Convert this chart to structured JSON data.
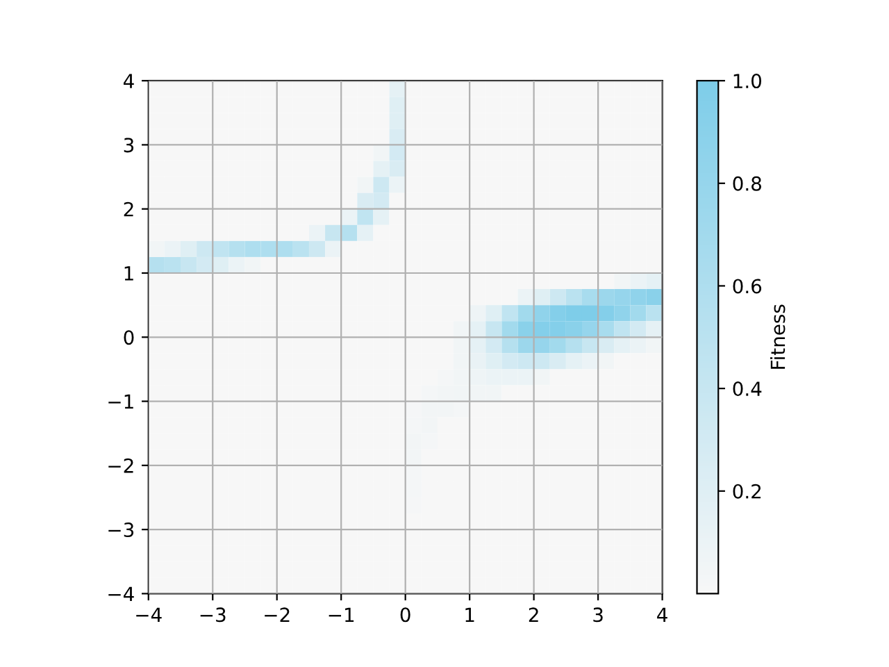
{
  "chart_data": {
    "type": "heatmap",
    "clabel": "Fitness",
    "xlim": [
      -4,
      4
    ],
    "ylim": [
      -4,
      4
    ],
    "xticks": [
      -4,
      -3,
      -2,
      -1,
      0,
      1,
      2,
      3,
      4
    ],
    "yticks": [
      -4,
      -3,
      -2,
      -1,
      0,
      1,
      2,
      3,
      4
    ],
    "clim": [
      0,
      1
    ],
    "cticks": [
      0.2,
      0.4,
      0.6,
      0.8,
      {
        "value": 1,
        "label": "1.0"
      }
    ],
    "colors": [
      "#f7f7f7",
      "#7ecde9"
    ],
    "grid": true,
    "cells": [
      [
        0,
        0,
        0,
        0,
        0,
        0,
        0,
        0,
        0,
        0,
        0,
        0,
        0,
        0,
        0,
        0.15,
        0,
        0,
        0,
        0,
        0,
        0,
        0,
        0,
        0,
        0,
        0,
        0,
        0,
        0,
        0,
        0
      ],
      [
        0,
        0,
        0,
        0,
        0,
        0,
        0,
        0,
        0,
        0,
        0,
        0,
        0,
        0,
        0,
        0.2,
        0,
        0,
        0,
        0,
        0,
        0,
        0,
        0,
        0,
        0,
        0,
        0,
        0,
        0,
        0,
        0
      ],
      [
        0,
        0,
        0,
        0,
        0,
        0,
        0,
        0,
        0,
        0,
        0,
        0,
        0,
        0,
        0,
        0.2,
        0,
        0,
        0,
        0,
        0,
        0,
        0,
        0,
        0,
        0,
        0,
        0,
        0,
        0,
        0,
        0
      ],
      [
        0,
        0,
        0,
        0,
        0,
        0,
        0,
        0,
        0,
        0,
        0,
        0,
        0,
        0,
        0,
        0.25,
        0,
        0,
        0,
        0,
        0,
        0,
        0,
        0,
        0,
        0,
        0,
        0,
        0,
        0,
        0,
        0
      ],
      [
        0,
        0,
        0,
        0,
        0,
        0,
        0,
        0,
        0,
        0,
        0,
        0,
        0,
        0,
        0.05,
        0.3,
        0,
        0,
        0,
        0,
        0,
        0,
        0,
        0,
        0,
        0,
        0,
        0,
        0,
        0,
        0,
        0
      ],
      [
        0,
        0,
        0,
        0,
        0,
        0,
        0,
        0,
        0,
        0,
        0,
        0,
        0,
        0,
        0.15,
        0.25,
        0,
        0,
        0,
        0,
        0,
        0,
        0,
        0,
        0,
        0,
        0,
        0,
        0,
        0,
        0,
        0
      ],
      [
        0,
        0,
        0,
        0,
        0,
        0,
        0,
        0,
        0,
        0,
        0,
        0,
        0,
        0.05,
        0.35,
        0.1,
        0,
        0,
        0,
        0,
        0,
        0,
        0,
        0,
        0,
        0,
        0,
        0,
        0,
        0,
        0,
        0
      ],
      [
        0,
        0,
        0,
        0,
        0,
        0,
        0,
        0,
        0,
        0,
        0,
        0,
        0,
        0.25,
        0.3,
        0,
        0,
        0,
        0,
        0,
        0,
        0,
        0,
        0,
        0,
        0,
        0,
        0,
        0,
        0,
        0,
        0
      ],
      [
        0,
        0,
        0,
        0,
        0,
        0,
        0,
        0,
        0,
        0,
        0,
        0,
        0.1,
        0.45,
        0.15,
        0,
        0,
        0,
        0,
        0,
        0,
        0,
        0,
        0,
        0,
        0,
        0,
        0,
        0,
        0,
        0,
        0
      ],
      [
        0,
        0,
        0,
        0,
        0,
        0,
        0,
        0,
        0,
        0,
        0.1,
        0.4,
        0.55,
        0.15,
        0,
        0,
        0,
        0,
        0,
        0,
        0,
        0,
        0,
        0,
        0,
        0,
        0,
        0,
        0,
        0,
        0,
        0
      ],
      [
        0.05,
        0.1,
        0.2,
        0.35,
        0.45,
        0.55,
        0.6,
        0.6,
        0.6,
        0.5,
        0.35,
        0.1,
        0,
        0,
        0,
        0,
        0,
        0,
        0,
        0,
        0,
        0,
        0,
        0,
        0,
        0,
        0,
        0,
        0,
        0,
        0,
        0
      ],
      [
        0.55,
        0.5,
        0.4,
        0.3,
        0.2,
        0.1,
        0.05,
        0,
        0,
        0,
        0,
        0,
        0,
        0,
        0,
        0,
        0,
        0,
        0,
        0,
        0,
        0,
        0,
        0,
        0,
        0,
        0,
        0,
        0,
        0,
        0,
        0
      ],
      [
        0,
        0,
        0,
        0,
        0,
        0,
        0,
        0,
        0,
        0,
        0,
        0,
        0,
        0,
        0,
        0,
        0,
        0,
        0,
        0,
        0,
        0,
        0,
        0,
        0,
        0,
        0,
        0,
        0,
        0.05,
        0.1,
        0.15
      ],
      [
        0,
        0,
        0,
        0,
        0,
        0,
        0,
        0,
        0,
        0,
        0,
        0,
        0,
        0,
        0,
        0,
        0,
        0,
        0,
        0,
        0,
        0,
        0,
        0.1,
        0.2,
        0.35,
        0.5,
        0.65,
        0.75,
        0.8,
        0.85,
        0.9
      ],
      [
        0,
        0,
        0,
        0,
        0,
        0,
        0,
        0,
        0,
        0,
        0,
        0,
        0,
        0,
        0,
        0,
        0,
        0,
        0,
        0,
        0.08,
        0.2,
        0.45,
        0.7,
        0.85,
        0.95,
        1.0,
        1.0,
        0.95,
        0.85,
        0.7,
        0.5
      ],
      [
        0,
        0,
        0,
        0,
        0,
        0,
        0,
        0,
        0,
        0,
        0,
        0,
        0,
        0,
        0,
        0,
        0,
        0,
        0,
        0.05,
        0.15,
        0.4,
        0.7,
        0.9,
        0.95,
        0.95,
        0.9,
        0.8,
        0.65,
        0.45,
        0.3,
        0.15
      ],
      [
        0,
        0,
        0,
        0,
        0,
        0,
        0,
        0,
        0,
        0,
        0,
        0,
        0,
        0,
        0,
        0,
        0,
        0,
        0,
        0.05,
        0.15,
        0.3,
        0.55,
        0.75,
        0.8,
        0.7,
        0.55,
        0.4,
        0.25,
        0.15,
        0.1,
        0.05
      ],
      [
        0,
        0,
        0,
        0,
        0,
        0,
        0,
        0,
        0,
        0,
        0,
        0,
        0,
        0,
        0,
        0,
        0,
        0,
        0,
        0.05,
        0.12,
        0.2,
        0.3,
        0.35,
        0.35,
        0.25,
        0.15,
        0.1,
        0.05,
        0,
        0,
        0
      ],
      [
        0,
        0,
        0,
        0,
        0,
        0,
        0,
        0,
        0,
        0,
        0,
        0,
        0,
        0,
        0,
        0,
        0,
        0,
        0.03,
        0.05,
        0.08,
        0.1,
        0.1,
        0.1,
        0.05,
        0,
        0,
        0,
        0,
        0,
        0,
        0
      ],
      [
        0,
        0,
        0,
        0,
        0,
        0,
        0,
        0,
        0,
        0,
        0,
        0,
        0,
        0,
        0,
        0,
        0,
        0.03,
        0.04,
        0.05,
        0.05,
        0.05,
        0,
        0,
        0,
        0,
        0,
        0,
        0,
        0,
        0,
        0
      ],
      [
        0,
        0,
        0,
        0,
        0,
        0,
        0,
        0,
        0,
        0,
        0,
        0,
        0,
        0,
        0,
        0,
        0.02,
        0.04,
        0.04,
        0.03,
        0,
        0,
        0,
        0,
        0,
        0,
        0,
        0,
        0,
        0,
        0,
        0
      ],
      [
        0,
        0,
        0,
        0,
        0,
        0,
        0,
        0,
        0,
        0,
        0,
        0,
        0,
        0,
        0,
        0,
        0.03,
        0.04,
        0,
        0,
        0,
        0,
        0,
        0,
        0,
        0,
        0,
        0,
        0,
        0,
        0,
        0
      ],
      [
        0,
        0,
        0,
        0,
        0,
        0,
        0,
        0,
        0,
        0,
        0,
        0,
        0,
        0,
        0,
        0,
        0.04,
        0.03,
        0,
        0,
        0,
        0,
        0,
        0,
        0,
        0,
        0,
        0,
        0,
        0,
        0,
        0
      ],
      [
        0,
        0,
        0,
        0,
        0,
        0,
        0,
        0,
        0,
        0,
        0,
        0,
        0,
        0,
        0,
        0,
        0.04,
        0,
        0,
        0,
        0,
        0,
        0,
        0,
        0,
        0,
        0,
        0,
        0,
        0,
        0,
        0
      ],
      [
        0,
        0,
        0,
        0,
        0,
        0,
        0,
        0,
        0,
        0,
        0,
        0,
        0,
        0,
        0,
        0,
        0.03,
        0,
        0,
        0,
        0,
        0,
        0,
        0,
        0,
        0,
        0,
        0,
        0,
        0,
        0,
        0
      ],
      [
        0,
        0,
        0,
        0,
        0,
        0,
        0,
        0,
        0,
        0,
        0,
        0,
        0,
        0,
        0,
        0,
        0.03,
        0,
        0,
        0,
        0,
        0,
        0,
        0,
        0,
        0,
        0,
        0,
        0,
        0,
        0,
        0
      ],
      [
        0,
        0,
        0,
        0,
        0,
        0,
        0,
        0,
        0,
        0,
        0,
        0,
        0,
        0,
        0,
        0,
        0.02,
        0,
        0,
        0,
        0,
        0,
        0,
        0,
        0,
        0,
        0,
        0,
        0,
        0,
        0,
        0
      ],
      [
        0,
        0,
        0,
        0,
        0,
        0,
        0,
        0,
        0,
        0,
        0,
        0,
        0,
        0,
        0,
        0,
        0,
        0,
        0,
        0,
        0,
        0,
        0,
        0,
        0,
        0,
        0,
        0,
        0,
        0,
        0,
        0
      ],
      [
        0,
        0,
        0,
        0,
        0,
        0,
        0,
        0,
        0,
        0,
        0,
        0,
        0,
        0,
        0,
        0,
        0,
        0,
        0,
        0,
        0,
        0,
        0,
        0,
        0,
        0,
        0,
        0,
        0,
        0,
        0,
        0
      ],
      [
        0,
        0,
        0,
        0,
        0,
        0,
        0,
        0,
        0,
        0,
        0,
        0,
        0,
        0,
        0,
        0,
        0,
        0,
        0,
        0,
        0,
        0,
        0,
        0,
        0,
        0,
        0,
        0,
        0,
        0,
        0,
        0
      ],
      [
        0,
        0,
        0,
        0,
        0,
        0,
        0,
        0,
        0,
        0,
        0,
        0,
        0,
        0,
        0,
        0,
        0,
        0,
        0,
        0,
        0,
        0,
        0,
        0,
        0,
        0,
        0,
        0,
        0,
        0,
        0,
        0
      ],
      [
        0,
        0,
        0,
        0,
        0,
        0,
        0,
        0,
        0,
        0,
        0,
        0,
        0,
        0,
        0,
        0,
        0,
        0,
        0,
        0,
        0,
        0,
        0,
        0,
        0,
        0,
        0,
        0,
        0,
        0,
        0,
        0
      ]
    ]
  }
}
